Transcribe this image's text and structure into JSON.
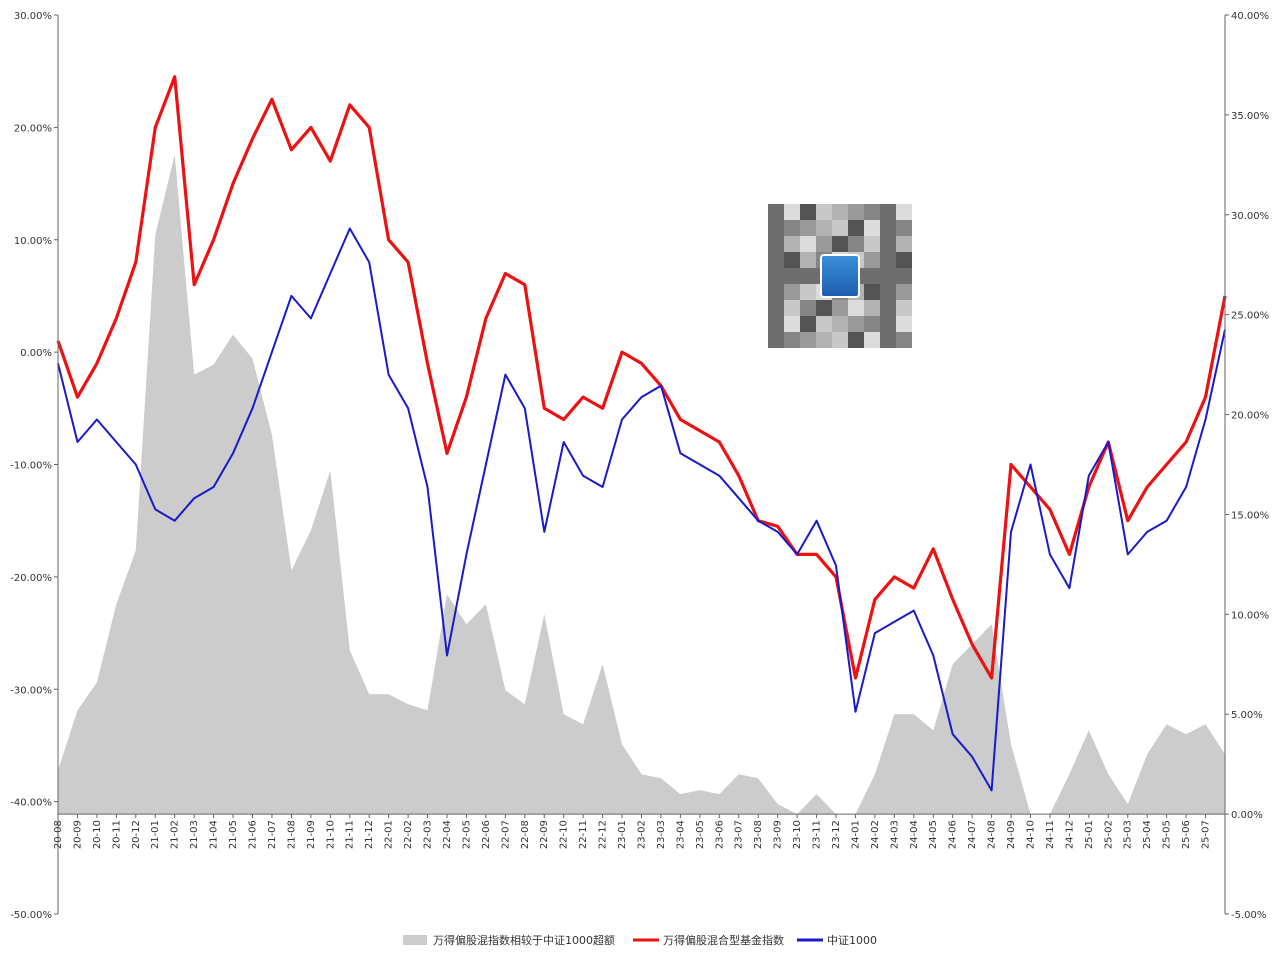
{
  "chart_data": {
    "type": "line",
    "title": "",
    "xlabel": "",
    "ylabel": "",
    "left_axis": {
      "range": [
        -0.5,
        0.3
      ],
      "ticks": [
        "-50.00%",
        "-40.00%",
        "-30.00%",
        "-20.00%",
        "-10.00%",
        "0.00%",
        "10.00%",
        "20.00%",
        "30.00%"
      ]
    },
    "right_axis": {
      "range": [
        -0.05,
        0.4
      ],
      "ticks": [
        "-5.00%",
        "0.00%",
        "5.00%",
        "10.00%",
        "15.00%",
        "20.00%",
        "25.00%",
        "30.00%",
        "35.00%",
        "40.00%"
      ]
    },
    "x_axis": {
      "start": "2020-08",
      "end": "2025-08",
      "ticks": [
        "20-08",
        "20-09",
        "20-10",
        "20-11",
        "20-12",
        "21-01",
        "21-02",
        "21-03",
        "21-04",
        "21-05",
        "21-06",
        "21-07",
        "21-08",
        "21-09",
        "21-10",
        "21-11",
        "21-12",
        "22-01",
        "22-02",
        "22-03",
        "22-04",
        "22-05",
        "22-06",
        "22-07",
        "22-08",
        "22-09",
        "22-10",
        "22-11",
        "22-12",
        "23-01",
        "23-02",
        "23-03",
        "23-04",
        "23-05",
        "23-06",
        "23-07",
        "23-08",
        "23-09",
        "23-10",
        "23-11",
        "23-12",
        "24-01",
        "24-02",
        "24-03",
        "24-04",
        "24-05",
        "24-06",
        "24-07",
        "24-08",
        "24-09",
        "24-10",
        "24-11",
        "24-12",
        "25-01",
        "25-02",
        "25-03",
        "25-04",
        "25-05",
        "25-06",
        "25-07"
      ]
    },
    "legend_position": "bottom-center",
    "grid": false,
    "series": [
      {
        "name": "万得偏股混指数相较于中证1000超额",
        "type": "area",
        "axis": "right",
        "color": "#cccccc",
        "x": [
          "2020-08",
          "2020-09",
          "2020-10",
          "2020-11",
          "2020-12",
          "2021-01",
          "2021-02",
          "2021-03",
          "2021-04",
          "2021-05",
          "2021-06",
          "2021-07",
          "2021-08",
          "2021-09",
          "2021-10",
          "2021-11",
          "2021-12",
          "2022-01",
          "2022-02",
          "2022-03",
          "2022-04",
          "2022-05",
          "2022-06",
          "2022-07",
          "2022-08",
          "2022-09",
          "2022-10",
          "2022-11",
          "2022-12",
          "2023-01",
          "2023-02",
          "2023-03",
          "2023-04",
          "2023-05",
          "2023-06",
          "2023-07",
          "2023-08",
          "2023-09",
          "2023-10",
          "2023-11",
          "2023-12",
          "2024-01",
          "2024-02",
          "2024-03",
          "2024-04",
          "2024-05",
          "2024-06",
          "2024-07",
          "2024-08",
          "2024-09",
          "2024-10",
          "2024-11",
          "2024-12",
          "2025-01",
          "2025-02",
          "2025-03",
          "2025-04",
          "2025-05",
          "2025-06",
          "2025-07",
          "2025-08"
        ],
        "values": [
          0.022,
          0.052,
          0.066,
          0.105,
          0.132,
          0.29,
          0.33,
          0.22,
          0.225,
          0.24,
          0.228,
          0.19,
          0.122,
          0.142,
          0.172,
          0.082,
          0.06,
          0.06,
          0.055,
          0.052,
          0.11,
          0.095,
          0.105,
          0.062,
          0.055,
          0.1,
          0.05,
          0.045,
          0.075,
          0.035,
          0.02,
          0.018,
          0.01,
          0.012,
          0.01,
          0.02,
          0.018,
          0.005,
          0.0,
          0.01,
          0.0,
          0.0,
          0.02,
          0.05,
          0.05,
          0.042,
          0.075,
          0.085,
          0.095,
          0.035,
          0.0,
          0.0,
          0.02,
          0.042,
          0.02,
          0.005,
          0.03,
          0.045,
          0.04,
          0.045,
          0.03
        ]
      },
      {
        "name": "万得偏股混合型基金指数",
        "type": "line",
        "axis": "left",
        "color": "#ee1111",
        "x": [
          "2020-08",
          "2020-09",
          "2020-10",
          "2020-11",
          "2020-12",
          "2021-01",
          "2021-02",
          "2021-03",
          "2021-04",
          "2021-05",
          "2021-06",
          "2021-07",
          "2021-08",
          "2021-09",
          "2021-10",
          "2021-11",
          "2021-12",
          "2022-01",
          "2022-02",
          "2022-03",
          "2022-04",
          "2022-05",
          "2022-06",
          "2022-07",
          "2022-08",
          "2022-09",
          "2022-10",
          "2022-11",
          "2022-12",
          "2023-01",
          "2023-02",
          "2023-03",
          "2023-04",
          "2023-05",
          "2023-06",
          "2023-07",
          "2023-08",
          "2023-09",
          "2023-10",
          "2023-11",
          "2023-12",
          "2024-01",
          "2024-02",
          "2024-03",
          "2024-04",
          "2024-05",
          "2024-06",
          "2024-07",
          "2024-08",
          "2024-09",
          "2024-10",
          "2024-11",
          "2024-12",
          "2025-01",
          "2025-02",
          "2025-03",
          "2025-04",
          "2025-05",
          "2025-06",
          "2025-07",
          "2025-08"
        ],
        "values": [
          0.01,
          -0.04,
          -0.01,
          0.03,
          0.08,
          0.2,
          0.245,
          0.06,
          0.1,
          0.15,
          0.19,
          0.225,
          0.18,
          0.2,
          0.17,
          0.22,
          0.2,
          0.1,
          0.08,
          -0.01,
          -0.09,
          -0.04,
          0.03,
          0.07,
          0.06,
          -0.05,
          -0.06,
          -0.04,
          -0.05,
          0.0,
          -0.01,
          -0.03,
          -0.06,
          -0.07,
          -0.08,
          -0.11,
          -0.15,
          -0.155,
          -0.18,
          -0.18,
          -0.2,
          -0.29,
          -0.22,
          -0.2,
          -0.21,
          -0.175,
          -0.22,
          -0.26,
          -0.29,
          -0.1,
          -0.12,
          -0.14,
          -0.18,
          -0.12,
          -0.08,
          -0.15,
          -0.12,
          -0.1,
          -0.08,
          -0.04,
          0.05
        ]
      },
      {
        "name": "中证1000",
        "type": "line",
        "axis": "left",
        "color": "#1a1acc",
        "x": [
          "2020-08",
          "2020-09",
          "2020-10",
          "2020-11",
          "2020-12",
          "2021-01",
          "2021-02",
          "2021-03",
          "2021-04",
          "2021-05",
          "2021-06",
          "2021-07",
          "2021-08",
          "2021-09",
          "2021-10",
          "2021-11",
          "2021-12",
          "2022-01",
          "2022-02",
          "2022-03",
          "2022-04",
          "2022-05",
          "2022-06",
          "2022-07",
          "2022-08",
          "2022-09",
          "2022-10",
          "2022-11",
          "2022-12",
          "2023-01",
          "2023-02",
          "2023-03",
          "2023-04",
          "2023-05",
          "2023-06",
          "2023-07",
          "2023-08",
          "2023-09",
          "2023-10",
          "2023-11",
          "2023-12",
          "2024-01",
          "2024-02",
          "2024-03",
          "2024-04",
          "2024-05",
          "2024-06",
          "2024-07",
          "2024-08",
          "2024-09",
          "2024-10",
          "2024-11",
          "2024-12",
          "2025-01",
          "2025-02",
          "2025-03",
          "2025-04",
          "2025-05",
          "2025-06",
          "2025-07",
          "2025-08"
        ],
        "values": [
          -0.01,
          -0.08,
          -0.06,
          -0.08,
          -0.1,
          -0.14,
          -0.15,
          -0.13,
          -0.12,
          -0.09,
          -0.05,
          0.0,
          0.05,
          0.03,
          0.07,
          0.11,
          0.08,
          -0.02,
          -0.05,
          -0.12,
          -0.27,
          -0.18,
          -0.1,
          -0.02,
          -0.05,
          -0.16,
          -0.08,
          -0.11,
          -0.12,
          -0.06,
          -0.04,
          -0.03,
          -0.09,
          -0.1,
          -0.11,
          -0.13,
          -0.15,
          -0.16,
          -0.18,
          -0.15,
          -0.19,
          -0.32,
          -0.25,
          -0.24,
          -0.23,
          -0.27,
          -0.34,
          -0.36,
          -0.39,
          -0.16,
          -0.1,
          -0.18,
          -0.21,
          -0.11,
          -0.08,
          -0.18,
          -0.16,
          -0.15,
          -0.12,
          -0.06,
          0.02
        ]
      }
    ]
  },
  "watermark": {
    "icon": "qr-code-icon",
    "badge_icon": "app-logo-icon"
  }
}
